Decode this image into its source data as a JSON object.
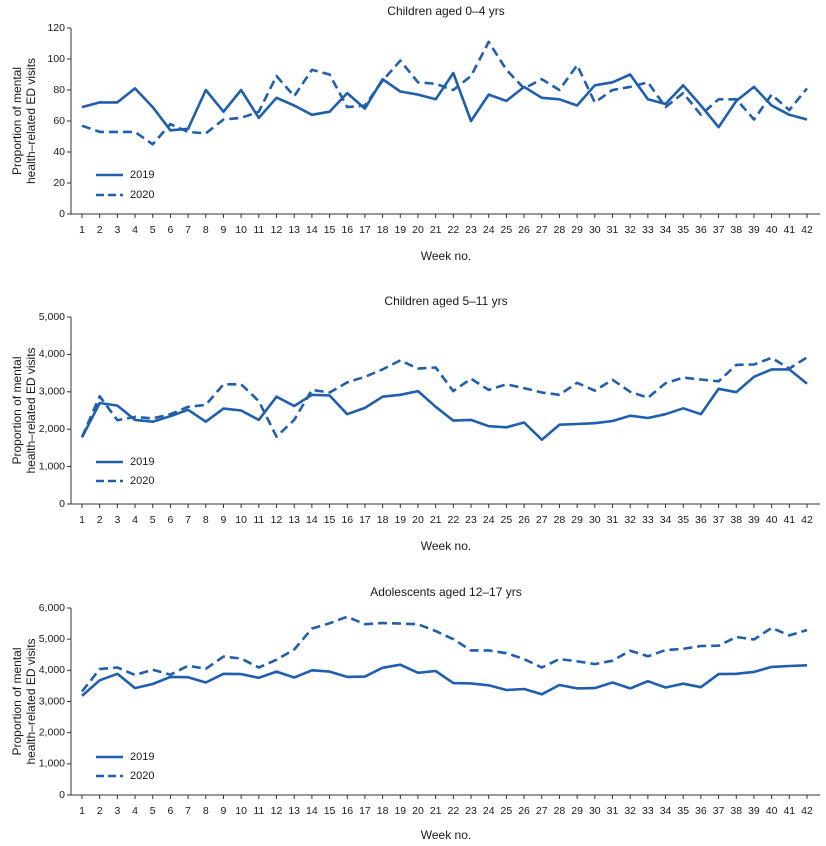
{
  "colors": {
    "line": "#1f5fad",
    "axis": "#333333"
  },
  "chart_data": [
    {
      "type": "line",
      "title": "Children aged 0–4 yrs",
      "xlabel": "Week no.",
      "ylabel": [
        "Proportion of mental",
        "health–related ED visits"
      ],
      "ylim": [
        0,
        120
      ],
      "yticks": [
        0,
        20,
        40,
        60,
        80,
        100,
        120
      ],
      "ytick_labels": [
        "0",
        "20",
        "40",
        "60",
        "80",
        "100",
        "120"
      ],
      "x": [
        1,
        2,
        3,
        4,
        5,
        6,
        7,
        8,
        9,
        10,
        11,
        12,
        13,
        14,
        15,
        16,
        17,
        18,
        19,
        20,
        21,
        22,
        23,
        24,
        25,
        26,
        27,
        28,
        29,
        30,
        31,
        32,
        33,
        34,
        35,
        36,
        37,
        38,
        39,
        40,
        41,
        42
      ],
      "series": [
        {
          "name": "2019",
          "style": "solid",
          "values": [
            69,
            72,
            72,
            81,
            69,
            54,
            55,
            80,
            66,
            80,
            62,
            75,
            70,
            64,
            66,
            78,
            68,
            87,
            79,
            77,
            74,
            91,
            60,
            77,
            73,
            82,
            75,
            74,
            70,
            83,
            85,
            90,
            74,
            71,
            83,
            70,
            56,
            73,
            82,
            70,
            64,
            61
          ]
        },
        {
          "name": "2020",
          "style": "dashed",
          "values": [
            57,
            53,
            53,
            53,
            45,
            58,
            53,
            52,
            61,
            62,
            66,
            89,
            76,
            93,
            90,
            69,
            70,
            86,
            99,
            85,
            84,
            80,
            89,
            111,
            93,
            81,
            87,
            80,
            96,
            72,
            80,
            82,
            85,
            69,
            78,
            64,
            74,
            74,
            61,
            77,
            67,
            81
          ]
        }
      ]
    },
    {
      "type": "line",
      "title": "Children aged 5–11 yrs",
      "xlabel": "Week no.",
      "ylabel": [
        "Proportion of mental",
        "health–related ED visits"
      ],
      "ylim": [
        0,
        5000
      ],
      "yticks": [
        0,
        1000,
        2000,
        3000,
        4000,
        5000
      ],
      "ytick_labels": [
        "0",
        "1,000",
        "2,000",
        "3,000",
        "4,000",
        "5,000"
      ],
      "x": [
        1,
        2,
        3,
        4,
        5,
        6,
        7,
        8,
        9,
        10,
        11,
        12,
        13,
        14,
        15,
        16,
        17,
        18,
        19,
        20,
        21,
        22,
        23,
        24,
        25,
        26,
        27,
        28,
        29,
        30,
        31,
        32,
        33,
        34,
        35,
        36,
        37,
        38,
        39,
        40,
        41,
        42
      ],
      "series": [
        {
          "name": "2019",
          "style": "solid",
          "values": [
            1780,
            2700,
            2630,
            2250,
            2200,
            2350,
            2520,
            2200,
            2550,
            2500,
            2250,
            2870,
            2620,
            2920,
            2900,
            2400,
            2570,
            2870,
            2920,
            3020,
            2600,
            2230,
            2250,
            2080,
            2050,
            2180,
            1720,
            2120,
            2140,
            2160,
            2220,
            2360,
            2300,
            2400,
            2560,
            2400,
            3080,
            2990,
            3400,
            3600,
            3600,
            3220
          ]
        },
        {
          "name": "2020",
          "style": "dashed",
          "values": [
            1790,
            2880,
            2240,
            2330,
            2290,
            2400,
            2600,
            2650,
            3200,
            3200,
            2750,
            1800,
            2250,
            3050,
            2980,
            3250,
            3400,
            3600,
            3840,
            3620,
            3650,
            3020,
            3350,
            3050,
            3200,
            3100,
            2980,
            2920,
            3240,
            3030,
            3320,
            3000,
            2840,
            3230,
            3380,
            3330,
            3280,
            3720,
            3730,
            3910,
            3620,
            3920
          ]
        }
      ]
    },
    {
      "type": "line",
      "title": "Adolescents aged 12–17 yrs",
      "xlabel": "Week no.",
      "ylabel": [
        "Proportion of mental",
        "health–related ED visits"
      ],
      "ylim": [
        0,
        6000
      ],
      "yticks": [
        0,
        1000,
        2000,
        3000,
        4000,
        5000,
        6000
      ],
      "ytick_labels": [
        "0",
        "1,000",
        "2,000",
        "3,000",
        "4,000",
        "5,000",
        "6,000"
      ],
      "x": [
        1,
        2,
        3,
        4,
        5,
        6,
        7,
        8,
        9,
        10,
        11,
        12,
        13,
        14,
        15,
        16,
        17,
        18,
        19,
        20,
        21,
        22,
        23,
        24,
        25,
        26,
        27,
        28,
        29,
        30,
        31,
        32,
        33,
        34,
        35,
        36,
        37,
        38,
        39,
        40,
        41,
        42
      ],
      "series": [
        {
          "name": "2019",
          "style": "solid",
          "values": [
            3180,
            3680,
            3890,
            3430,
            3560,
            3790,
            3780,
            3610,
            3890,
            3880,
            3760,
            3960,
            3770,
            4000,
            3960,
            3790,
            3800,
            4080,
            4180,
            3920,
            3980,
            3590,
            3580,
            3520,
            3370,
            3400,
            3230,
            3530,
            3420,
            3430,
            3610,
            3420,
            3650,
            3450,
            3570,
            3460,
            3880,
            3890,
            3950,
            4110,
            4140,
            4160
          ]
        },
        {
          "name": "2020",
          "style": "dashed",
          "values": [
            3320,
            4040,
            4090,
            3850,
            4020,
            3860,
            4150,
            4050,
            4440,
            4380,
            4090,
            4340,
            4670,
            5340,
            5510,
            5720,
            5480,
            5520,
            5500,
            5480,
            5260,
            5000,
            4640,
            4640,
            4550,
            4360,
            4090,
            4360,
            4290,
            4200,
            4310,
            4630,
            4450,
            4650,
            4690,
            4780,
            4790,
            5070,
            4990,
            5360,
            5120,
            5290
          ]
        }
      ]
    }
  ]
}
